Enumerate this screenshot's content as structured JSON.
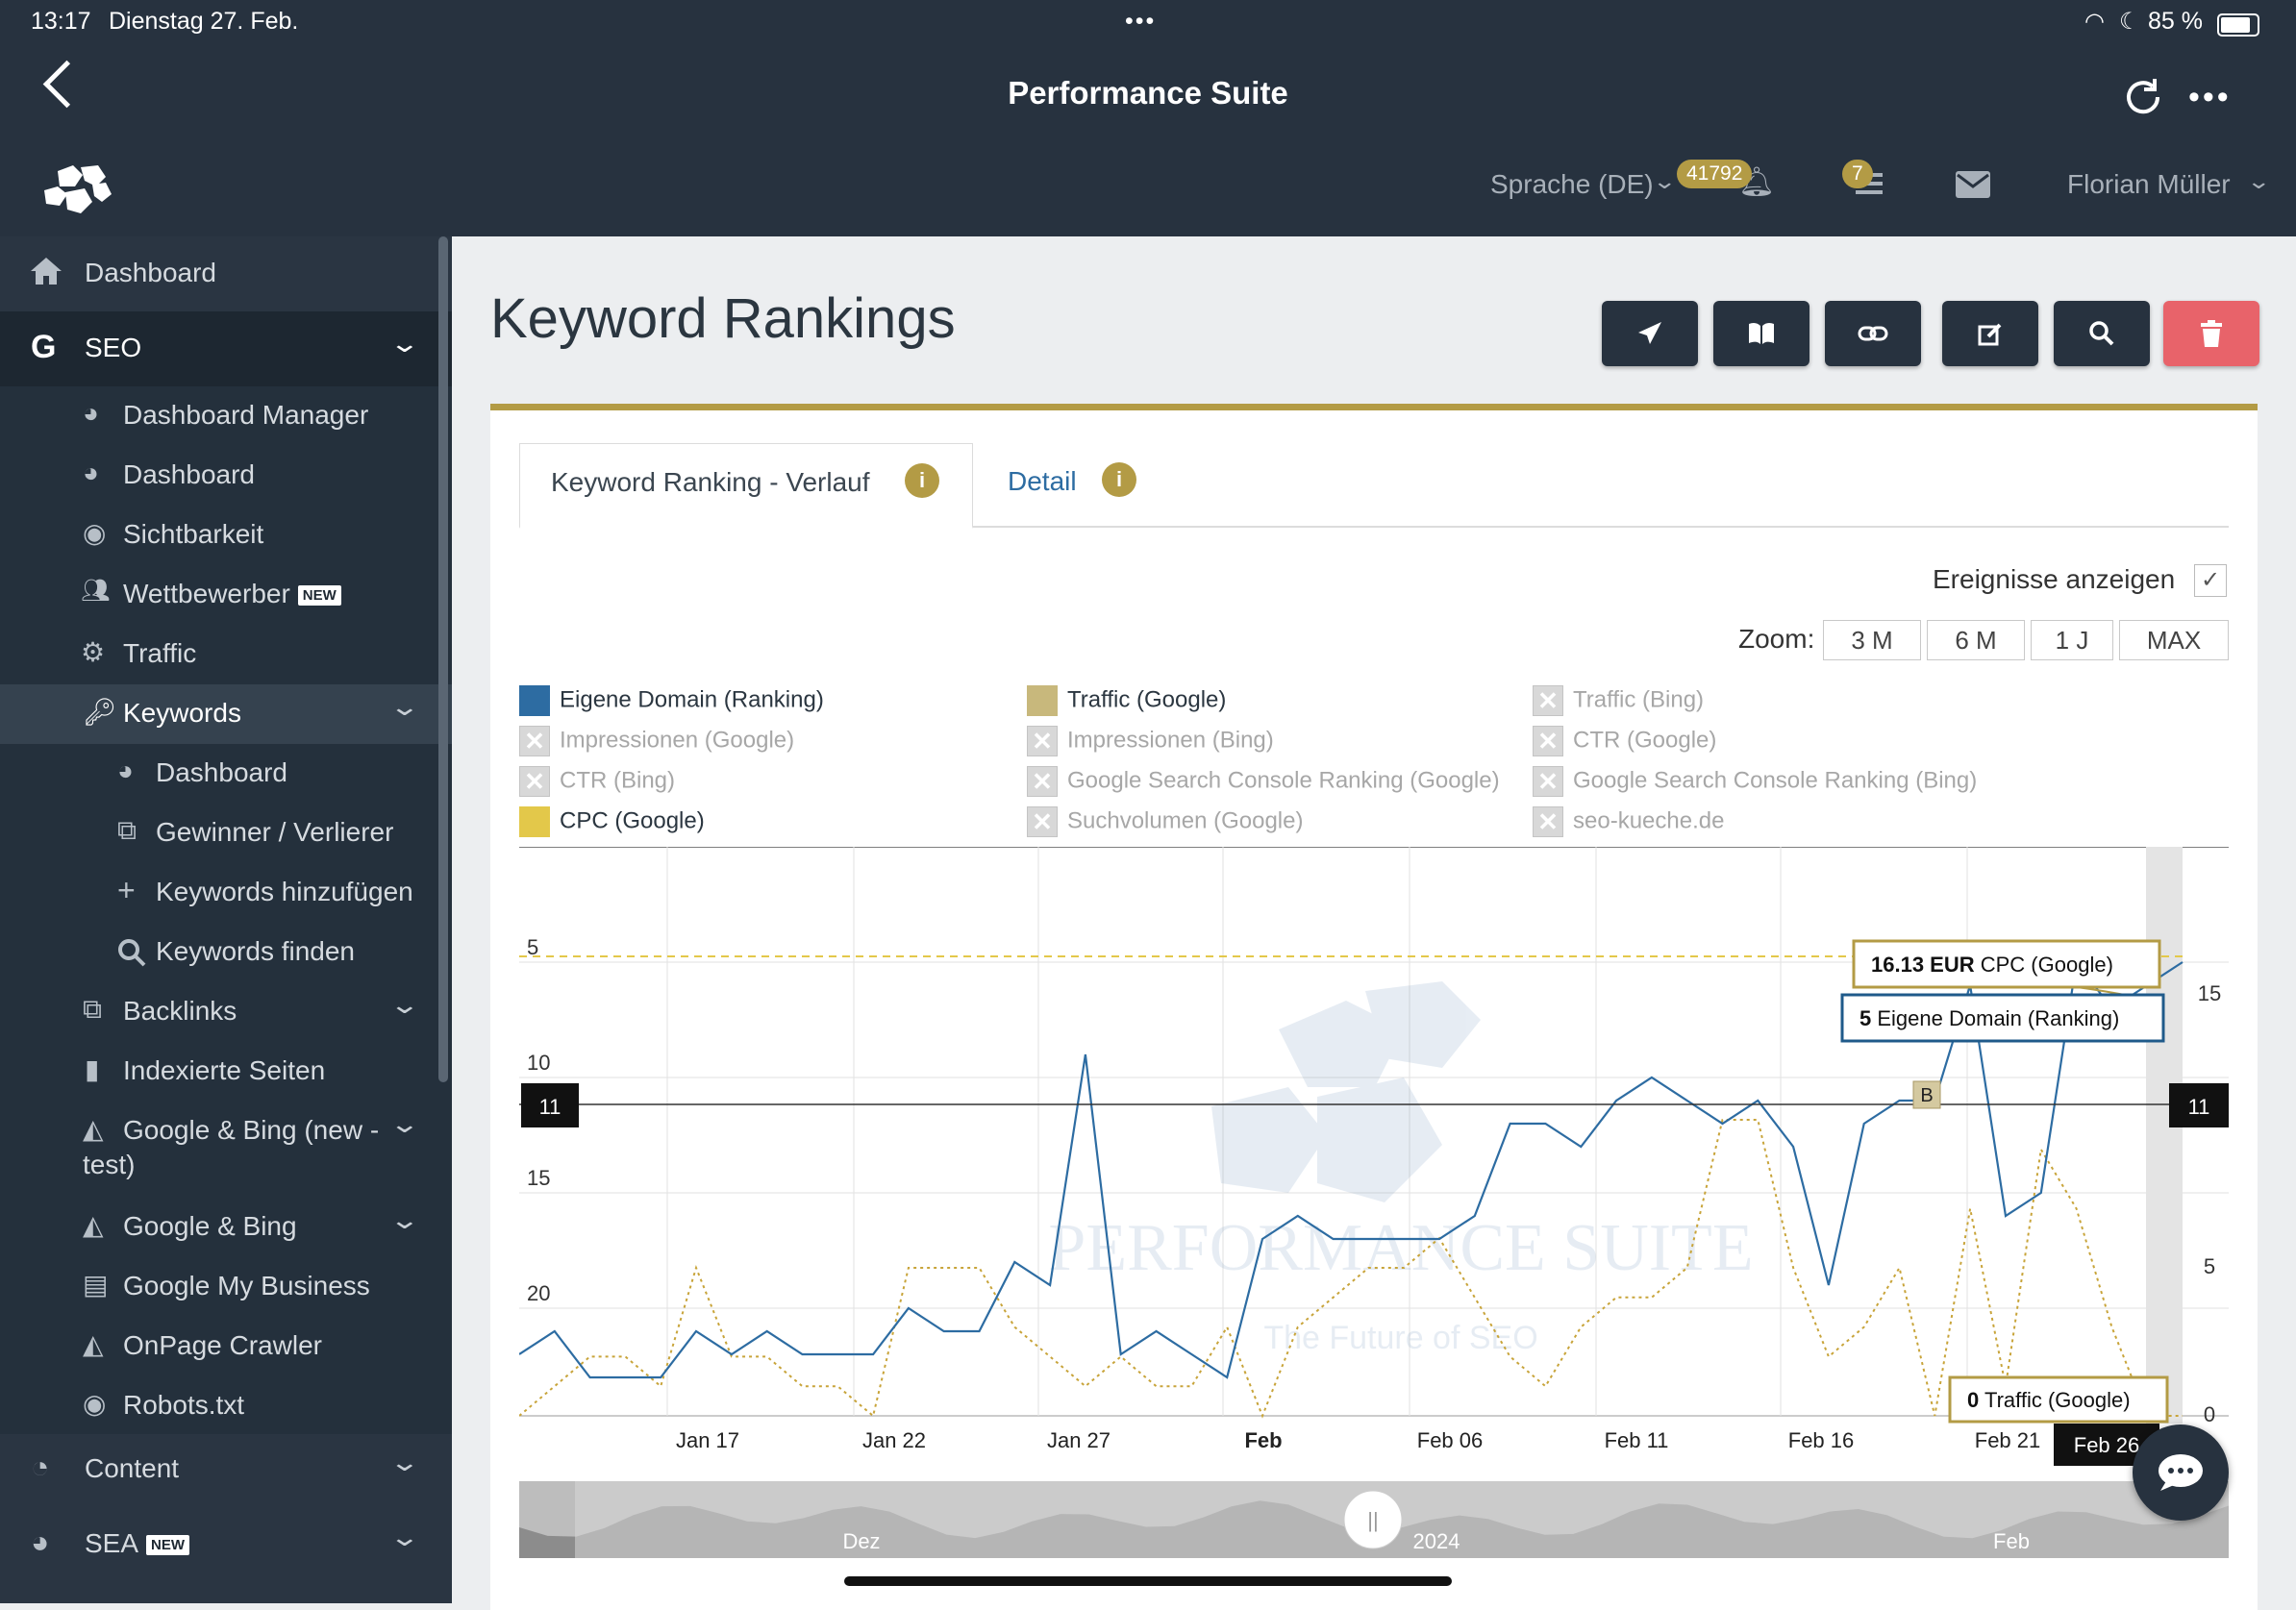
{
  "status": {
    "time": "13:17",
    "date": "Dienstag 27. Feb.",
    "dots": "•••",
    "battery": "85 %"
  },
  "header": {
    "title": "Performance Suite",
    "language": "Sprache (DE)",
    "notification_count": "41792",
    "task_count": "7",
    "user": "Florian Müller"
  },
  "sidebar": {
    "items": [
      {
        "label": "Dashboard"
      },
      {
        "label": "SEO"
      },
      {
        "label": "Dashboard Manager"
      },
      {
        "label": "Dashboard"
      },
      {
        "label": "Sichtbarkeit"
      },
      {
        "label": "Wettbewerber",
        "badge": "NEW"
      },
      {
        "label": "Traffic"
      },
      {
        "label": "Keywords"
      },
      {
        "label": "Dashboard"
      },
      {
        "label": "Gewinner / Verlierer"
      },
      {
        "label": "Keywords hinzufügen"
      },
      {
        "label": "Keywords finden"
      },
      {
        "label": "Backlinks"
      },
      {
        "label": "Indexierte Seiten"
      },
      {
        "label": "Google & Bing (new -"
      },
      {
        "label": "test)"
      },
      {
        "label": "Google & Bing"
      },
      {
        "label": "Google My Business"
      },
      {
        "label": "OnPage Crawler"
      },
      {
        "label": "Robots.txt"
      },
      {
        "label": "Content"
      },
      {
        "label": "SEA",
        "badge": "NEW"
      }
    ]
  },
  "main": {
    "page_title": "Keyword Rankings",
    "tabs": [
      {
        "label": "Keyword Ranking - Verlauf"
      },
      {
        "label": "Detail"
      }
    ],
    "events_label": "Ereignisse anzeigen",
    "zoom_label": "Zoom:",
    "zoom_options": [
      "3 M",
      "6 M",
      "1 J",
      "MAX"
    ],
    "legend": [
      {
        "label": "Eigene Domain (Ranking)",
        "active": true,
        "color": "#2d6ca2"
      },
      {
        "label": "Traffic (Google)",
        "active": true,
        "color": "#c8b87c"
      },
      {
        "label": "Traffic (Bing)",
        "active": false
      },
      {
        "label": "Impressionen (Google)",
        "active": false
      },
      {
        "label": "Impressionen (Bing)",
        "active": false
      },
      {
        "label": "CTR (Google)",
        "active": false
      },
      {
        "label": "CTR (Bing)",
        "active": false
      },
      {
        "label": "Google Search Console Ranking (Google)",
        "active": false
      },
      {
        "label": "Google Search Console Ranking (Bing)",
        "active": false
      },
      {
        "label": "CPC (Google)",
        "active": true,
        "color": "#e3c84a"
      },
      {
        "label": "Suchvolumen (Google)",
        "active": false
      },
      {
        "label": "seo-kueche.de",
        "active": false
      }
    ]
  },
  "chart_data": {
    "type": "line",
    "x_tick_labels": [
      "Jan 17",
      "Jan 22",
      "Jan 27",
      "Feb",
      "Feb 06",
      "Feb 11",
      "Feb 16",
      "Feb 21",
      "Feb 26"
    ],
    "y_left_ticks": [
      "5",
      "10",
      "15",
      "20"
    ],
    "y_left_reversed": true,
    "y_left_range": [
      2.5,
      25
    ],
    "y_right_ticks": [
      "0",
      "5",
      "15"
    ],
    "crosshair_value": "11",
    "watermark_title": "PERFORMANCE SUITE",
    "watermark_subtitle": "The Future of SEO",
    "event_marker": "B",
    "series": [
      {
        "name": "Eigene Domain (Ranking)",
        "color": "#2d6ca2",
        "x": [
          1,
          2,
          3,
          4,
          5,
          6,
          7,
          8,
          9,
          10,
          11,
          12,
          13,
          14,
          15,
          16,
          17,
          18,
          19,
          20,
          21,
          22,
          23,
          24,
          25,
          26,
          27,
          28,
          29,
          30,
          31,
          32,
          33,
          34,
          35,
          36,
          37,
          38,
          39,
          40,
          41,
          42,
          43,
          44,
          45,
          46,
          47,
          48
        ],
        "values": [
          22,
          21,
          23,
          23,
          23,
          21,
          22,
          21,
          22,
          22,
          22,
          20,
          21,
          21,
          18,
          19,
          9,
          22,
          21,
          22,
          23,
          17,
          16,
          17,
          17,
          17,
          17,
          16,
          12,
          12,
          13,
          11,
          10,
          11,
          12,
          11,
          13,
          19,
          12,
          11,
          11,
          6,
          16,
          15,
          5,
          7,
          6,
          5
        ]
      },
      {
        "name": "Traffic (Google)",
        "color": "#c8b87c",
        "x": [
          1,
          2,
          3,
          4,
          5,
          6,
          7,
          8,
          9,
          10,
          11,
          12,
          13,
          14,
          15,
          16,
          17,
          18,
          19,
          20,
          21,
          22,
          23,
          24,
          25,
          26,
          27,
          28,
          29,
          30,
          31,
          32,
          33,
          34,
          35,
          36,
          37,
          38,
          39,
          40,
          41,
          42,
          43,
          44,
          45,
          46,
          47,
          48
        ],
        "values": [
          0,
          1,
          2,
          2,
          1,
          5,
          2,
          2,
          1,
          1,
          0,
          5,
          5,
          5,
          3,
          2,
          1,
          2,
          1,
          1,
          3,
          0,
          3,
          4,
          5,
          5,
          6,
          4,
          2,
          1,
          3,
          4,
          4,
          5,
          10,
          10,
          5,
          2,
          3,
          5,
          0,
          7,
          1,
          9,
          7,
          3,
          0,
          0
        ]
      },
      {
        "name": "CPC (Google)",
        "color": "#e3c84a",
        "constant": 16.13,
        "unit": "EUR"
      }
    ],
    "tooltip": {
      "cpc_value": "16.13 EUR",
      "cpc_label": "CPC (Google)",
      "rank_value": "5",
      "rank_label": "Eigene Domain (Ranking)",
      "traffic_value": "0",
      "traffic_label": "Traffic (Google)",
      "date": "Feb 26"
    },
    "navigator_labels": [
      "Dez",
      "2024",
      "Feb"
    ],
    "navigator_handle": "||"
  }
}
